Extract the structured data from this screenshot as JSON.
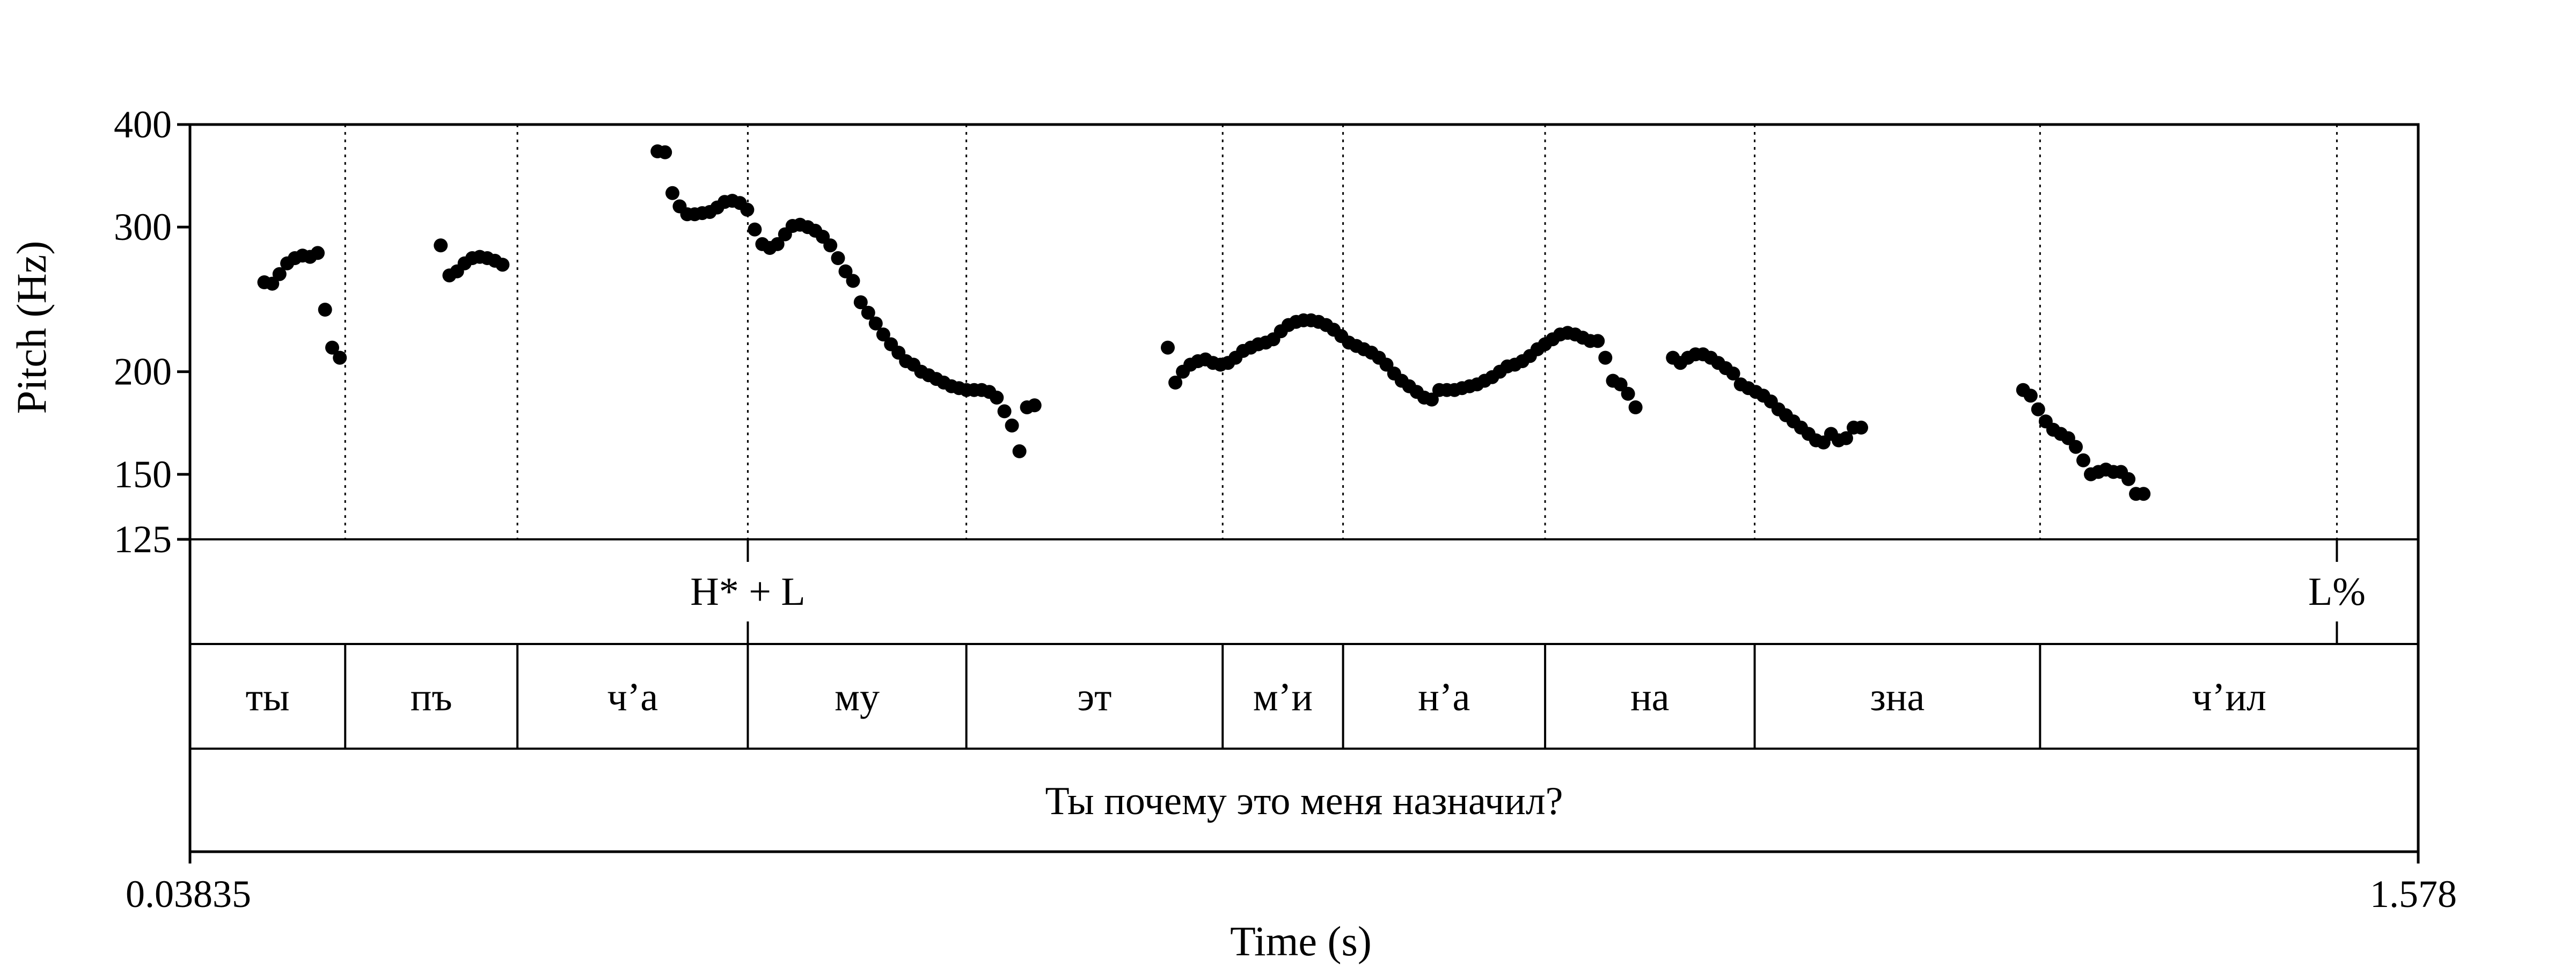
{
  "chart_data": {
    "type": "scatter",
    "xlabel": "Time (s)",
    "ylabel": "Pitch (Hz)",
    "xlim": [
      0.03835,
      1.578
    ],
    "ylim": [
      125,
      400
    ],
    "y_scale": "log",
    "x_tick_labels": [
      "0.03835",
      "1.578"
    ],
    "y_ticks": [
      125,
      150,
      200,
      300,
      400
    ],
    "colors": {
      "points": "#000000",
      "lines": "#000000"
    },
    "pitch_points": [
      [
        0.0897,
        257
      ],
      [
        0.0952,
        256
      ],
      [
        0.1002,
        263
      ],
      [
        0.1055,
        271
      ],
      [
        0.1108,
        275
      ],
      [
        0.1161,
        277
      ],
      [
        0.1213,
        276
      ],
      [
        0.1266,
        279
      ],
      [
        0.1317,
        238
      ],
      [
        0.1366,
        214
      ],
      [
        0.1419,
        208
      ],
      [
        0.2116,
        285
      ],
      [
        0.2176,
        262
      ],
      [
        0.2229,
        265
      ],
      [
        0.2281,
        271
      ],
      [
        0.2334,
        275
      ],
      [
        0.2386,
        276
      ],
      [
        0.2438,
        275
      ],
      [
        0.2491,
        273
      ],
      [
        0.2543,
        270
      ],
      [
        0.3614,
        371
      ],
      [
        0.3666,
        370
      ],
      [
        0.3717,
        330
      ],
      [
        0.3767,
        318
      ],
      [
        0.3819,
        311
      ],
      [
        0.3871,
        311
      ],
      [
        0.3923,
        312
      ],
      [
        0.3975,
        313
      ],
      [
        0.4027,
        317
      ],
      [
        0.4078,
        322
      ],
      [
        0.4131,
        323
      ],
      [
        0.4183,
        321
      ],
      [
        0.4234,
        315
      ],
      [
        0.4286,
        298
      ],
      [
        0.4338,
        286
      ],
      [
        0.439,
        283
      ],
      [
        0.4443,
        286
      ],
      [
        0.4495,
        294
      ],
      [
        0.4547,
        301
      ],
      [
        0.4599,
        302
      ],
      [
        0.4652,
        300
      ],
      [
        0.4704,
        297
      ],
      [
        0.4756,
        292
      ],
      [
        0.4808,
        285
      ],
      [
        0.4861,
        275
      ],
      [
        0.4913,
        265
      ],
      [
        0.4965,
        258
      ],
      [
        0.5018,
        243
      ],
      [
        0.507,
        236
      ],
      [
        0.5122,
        229
      ],
      [
        0.5174,
        222
      ],
      [
        0.5227,
        216
      ],
      [
        0.5279,
        211
      ],
      [
        0.5331,
        206
      ],
      [
        0.5383,
        204
      ],
      [
        0.5436,
        200
      ],
      [
        0.5488,
        198
      ],
      [
        0.554,
        196
      ],
      [
        0.5592,
        194
      ],
      [
        0.5645,
        192
      ],
      [
        0.5697,
        191
      ],
      [
        0.5749,
        190
      ],
      [
        0.5802,
        190
      ],
      [
        0.5854,
        190
      ],
      [
        0.5906,
        189
      ],
      [
        0.5958,
        186
      ],
      [
        0.6011,
        179
      ],
      [
        0.6063,
        172
      ],
      [
        0.6115,
        160
      ],
      [
        0.6167,
        181
      ],
      [
        0.6219,
        182
      ],
      [
        0.714,
        214
      ],
      [
        0.7192,
        194
      ],
      [
        0.7244,
        200
      ],
      [
        0.7296,
        204
      ],
      [
        0.7348,
        206
      ],
      [
        0.74,
        207
      ],
      [
        0.7452,
        205
      ],
      [
        0.7504,
        204
      ],
      [
        0.7556,
        205
      ],
      [
        0.7608,
        208
      ],
      [
        0.766,
        212
      ],
      [
        0.7713,
        214
      ],
      [
        0.7765,
        216
      ],
      [
        0.7817,
        217
      ],
      [
        0.7869,
        219
      ],
      [
        0.7921,
        224
      ],
      [
        0.7974,
        228
      ],
      [
        0.8026,
        230
      ],
      [
        0.8078,
        231
      ],
      [
        0.813,
        231
      ],
      [
        0.8182,
        230
      ],
      [
        0.8234,
        228
      ],
      [
        0.8286,
        225
      ],
      [
        0.8339,
        221
      ],
      [
        0.8391,
        217
      ],
      [
        0.8443,
        215
      ],
      [
        0.8495,
        213
      ],
      [
        0.8547,
        211
      ],
      [
        0.8599,
        208
      ],
      [
        0.8651,
        204
      ],
      [
        0.8704,
        199
      ],
      [
        0.8756,
        195
      ],
      [
        0.8808,
        192
      ],
      [
        0.886,
        189
      ],
      [
        0.8912,
        186
      ],
      [
        0.8964,
        185
      ],
      [
        0.9016,
        190
      ],
      [
        0.9068,
        190
      ],
      [
        0.9121,
        190
      ],
      [
        0.9173,
        191
      ],
      [
        0.9225,
        192
      ],
      [
        0.9277,
        193
      ],
      [
        0.9329,
        195
      ],
      [
        0.9381,
        197
      ],
      [
        0.9434,
        200
      ],
      [
        0.9486,
        203
      ],
      [
        0.9538,
        204
      ],
      [
        0.959,
        206
      ],
      [
        0.9642,
        209
      ],
      [
        0.9694,
        213
      ],
      [
        0.9746,
        216
      ],
      [
        0.9799,
        219
      ],
      [
        0.9851,
        222
      ],
      [
        0.9903,
        223
      ],
      [
        0.9955,
        222
      ],
      [
        1.0007,
        220
      ],
      [
        1.0059,
        218
      ],
      [
        1.0111,
        218
      ],
      [
        1.0163,
        208
      ],
      [
        1.0216,
        195
      ],
      [
        1.0268,
        193
      ],
      [
        1.032,
        188
      ],
      [
        1.0372,
        181
      ],
      [
        1.063,
        208
      ],
      [
        1.0682,
        205
      ],
      [
        1.0734,
        208
      ],
      [
        1.0786,
        210
      ],
      [
        1.0838,
        210
      ],
      [
        1.0891,
        208
      ],
      [
        1.0943,
        205
      ],
      [
        1.0995,
        202
      ],
      [
        1.1047,
        199
      ],
      [
        1.1099,
        193
      ],
      [
        1.1151,
        191
      ],
      [
        1.1203,
        189
      ],
      [
        1.1255,
        187
      ],
      [
        1.1307,
        184
      ],
      [
        1.1359,
        180
      ],
      [
        1.1411,
        177
      ],
      [
        1.1463,
        174
      ],
      [
        1.1515,
        171
      ],
      [
        1.1567,
        168
      ],
      [
        1.1619,
        165
      ],
      [
        1.1671,
        164
      ],
      [
        1.1723,
        168
      ],
      [
        1.1775,
        165
      ],
      [
        1.1827,
        166
      ],
      [
        1.1879,
        171
      ],
      [
        1.1931,
        171
      ],
      [
        1.305,
        190
      ],
      [
        1.3102,
        187
      ],
      [
        1.3154,
        180
      ],
      [
        1.3206,
        174
      ],
      [
        1.3258,
        170
      ],
      [
        1.331,
        168
      ],
      [
        1.3362,
        166
      ],
      [
        1.3414,
        162
      ],
      [
        1.3466,
        156
      ],
      [
        1.3518,
        150
      ],
      [
        1.357,
        151
      ],
      [
        1.3622,
        152
      ],
      [
        1.3674,
        151
      ],
      [
        1.3726,
        151
      ],
      [
        1.3778,
        148
      ],
      [
        1.383,
        142
      ],
      [
        1.3882,
        142
      ]
    ],
    "tiers": [
      {
        "type": "point",
        "marks": [
          {
            "time": 0.4238,
            "label": "H* + L"
          },
          {
            "time": 1.5218,
            "label": "L%"
          }
        ]
      },
      {
        "type": "interval",
        "intervals": [
          {
            "start": 0.03835,
            "end": 0.1456,
            "label": "ты"
          },
          {
            "start": 0.1456,
            "end": 0.2646,
            "label": "пъ"
          },
          {
            "start": 0.2646,
            "end": 0.4238,
            "label": "ч’а"
          },
          {
            "start": 0.4238,
            "end": 0.5748,
            "label": "му"
          },
          {
            "start": 0.5748,
            "end": 0.7519,
            "label": "эт"
          },
          {
            "start": 0.7519,
            "end": 0.8351,
            "label": "м’и"
          },
          {
            "start": 0.8351,
            "end": 0.9747,
            "label": "н’а"
          },
          {
            "start": 0.9747,
            "end": 1.1195,
            "label": "на"
          },
          {
            "start": 1.1195,
            "end": 1.3167,
            "label": "зна"
          },
          {
            "start": 1.3167,
            "end": 1.578,
            "label": "ч’ил"
          }
        ]
      },
      {
        "type": "interval",
        "intervals": [
          {
            "start": 0.03835,
            "end": 1.578,
            "label": "Ты почему это меня назначил?"
          }
        ]
      }
    ]
  }
}
